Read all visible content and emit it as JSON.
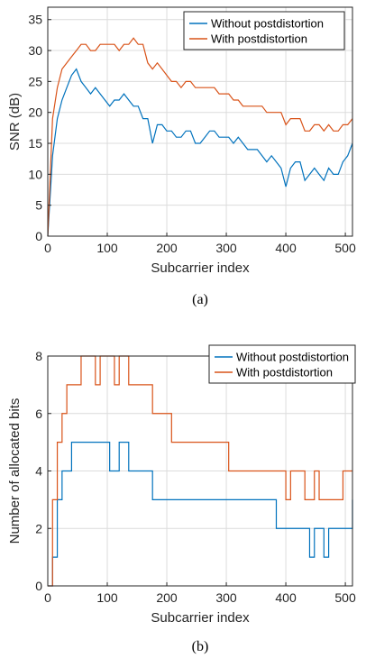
{
  "chart_data": [
    {
      "type": "line",
      "caption": "(a)",
      "xlabel": "Subcarrier index",
      "ylabel": "SNR (dB)",
      "xlim": [
        0,
        512
      ],
      "ylim": [
        0,
        37
      ],
      "xticks": [
        0,
        100,
        200,
        300,
        400,
        500
      ],
      "yticks": [
        0,
        5,
        10,
        15,
        20,
        25,
        30,
        35
      ],
      "grid": true,
      "legend": "top-right",
      "series": [
        {
          "name": "Without postdistortion",
          "color": "#0072BD",
          "x": [
            0,
            8,
            16,
            24,
            32,
            40,
            48,
            56,
            64,
            72,
            80,
            88,
            96,
            104,
            112,
            120,
            128,
            136,
            144,
            152,
            160,
            168,
            176,
            184,
            192,
            200,
            208,
            216,
            224,
            232,
            240,
            248,
            256,
            264,
            272,
            280,
            288,
            296,
            304,
            312,
            320,
            328,
            336,
            344,
            352,
            360,
            368,
            376,
            384,
            392,
            400,
            408,
            416,
            424,
            432,
            440,
            448,
            456,
            464,
            472,
            480,
            488,
            496,
            504,
            512
          ],
          "y": [
            0,
            13,
            19,
            22,
            24,
            26,
            27,
            25,
            24,
            23,
            24,
            23,
            22,
            21,
            22,
            22,
            23,
            22,
            21,
            21,
            19,
            19,
            15,
            18,
            18,
            17,
            17,
            16,
            16,
            17,
            17,
            15,
            15,
            16,
            17,
            17,
            16,
            16,
            16,
            15,
            16,
            15,
            14,
            14,
            14,
            13,
            12,
            13,
            12,
            11,
            8,
            11,
            12,
            12,
            9,
            10,
            11,
            10,
            9,
            11,
            10,
            10,
            12,
            13,
            15
          ]
        },
        {
          "name": "With postdistortion",
          "color": "#D95319",
          "x": [
            0,
            8,
            16,
            24,
            32,
            40,
            48,
            56,
            64,
            72,
            80,
            88,
            96,
            104,
            112,
            120,
            128,
            136,
            144,
            152,
            160,
            168,
            176,
            184,
            192,
            200,
            208,
            216,
            224,
            232,
            240,
            248,
            256,
            264,
            272,
            280,
            288,
            296,
            304,
            312,
            320,
            328,
            336,
            344,
            352,
            360,
            368,
            376,
            384,
            392,
            400,
            408,
            416,
            424,
            432,
            440,
            448,
            456,
            464,
            472,
            480,
            488,
            496,
            504,
            512
          ],
          "y": [
            0,
            19,
            24,
            27,
            28,
            29,
            30,
            31,
            31,
            30,
            30,
            31,
            31,
            31,
            31,
            30,
            31,
            31,
            32,
            31,
            31,
            28,
            27,
            28,
            27,
            26,
            25,
            25,
            24,
            25,
            25,
            24,
            24,
            24,
            24,
            24,
            23,
            23,
            23,
            22,
            22,
            21,
            21,
            21,
            21,
            21,
            20,
            20,
            20,
            20,
            18,
            19,
            19,
            19,
            17,
            17,
            18,
            18,
            17,
            18,
            17,
            17,
            18,
            18,
            19
          ]
        }
      ]
    },
    {
      "type": "line",
      "caption": "(b)",
      "xlabel": "Subcarrier index",
      "ylabel": "Number of allocated bits",
      "xlim": [
        0,
        512
      ],
      "ylim": [
        0,
        8
      ],
      "xticks": [
        0,
        100,
        200,
        300,
        400,
        500
      ],
      "yticks": [
        0,
        2,
        4,
        6,
        8
      ],
      "grid": true,
      "legend": "top-right",
      "series": [
        {
          "name": "Without postdistortion",
          "color": "#0072BD",
          "x": [
            0,
            8,
            16,
            24,
            32,
            40,
            48,
            56,
            64,
            72,
            80,
            88,
            96,
            104,
            112,
            120,
            128,
            136,
            144,
            152,
            160,
            168,
            176,
            184,
            192,
            200,
            208,
            216,
            224,
            232,
            240,
            248,
            256,
            264,
            272,
            280,
            288,
            296,
            304,
            312,
            320,
            328,
            336,
            344,
            352,
            360,
            368,
            376,
            384,
            392,
            400,
            408,
            416,
            424,
            432,
            440,
            448,
            456,
            464,
            472,
            480,
            488,
            496,
            504,
            512
          ],
          "y": [
            0,
            1,
            3,
            4,
            4,
            5,
            5,
            5,
            5,
            5,
            5,
            5,
            5,
            4,
            4,
            5,
            5,
            4,
            4,
            4,
            4,
            4,
            3,
            3,
            3,
            3,
            3,
            3,
            3,
            3,
            3,
            3,
            3,
            3,
            3,
            3,
            3,
            3,
            3,
            3,
            3,
            3,
            3,
            3,
            3,
            3,
            3,
            3,
            2,
            2,
            2,
            2,
            2,
            2,
            2,
            1,
            2,
            2,
            1,
            2,
            2,
            2,
            2,
            2,
            3
          ]
        },
        {
          "name": "With postdistortion",
          "color": "#D95319",
          "x": [
            0,
            8,
            16,
            24,
            32,
            40,
            48,
            56,
            64,
            72,
            80,
            88,
            96,
            104,
            112,
            120,
            128,
            136,
            144,
            152,
            160,
            168,
            176,
            184,
            192,
            200,
            208,
            216,
            224,
            232,
            240,
            248,
            256,
            264,
            272,
            280,
            288,
            296,
            304,
            312,
            320,
            328,
            336,
            344,
            352,
            360,
            368,
            376,
            384,
            392,
            400,
            408,
            416,
            424,
            432,
            440,
            448,
            456,
            464,
            472,
            480,
            488,
            496,
            504,
            512
          ],
          "y": [
            0,
            3,
            5,
            6,
            7,
            7,
            7,
            8,
            8,
            8,
            7,
            8,
            8,
            8,
            7,
            8,
            8,
            7,
            7,
            7,
            7,
            7,
            6,
            6,
            6,
            6,
            5,
            5,
            5,
            5,
            5,
            5,
            5,
            5,
            5,
            5,
            5,
            5,
            4,
            4,
            4,
            4,
            4,
            4,
            4,
            4,
            4,
            4,
            4,
            4,
            3,
            4,
            4,
            4,
            3,
            3,
            4,
            3,
            3,
            3,
            3,
            3,
            4,
            4,
            4
          ]
        }
      ]
    }
  ]
}
